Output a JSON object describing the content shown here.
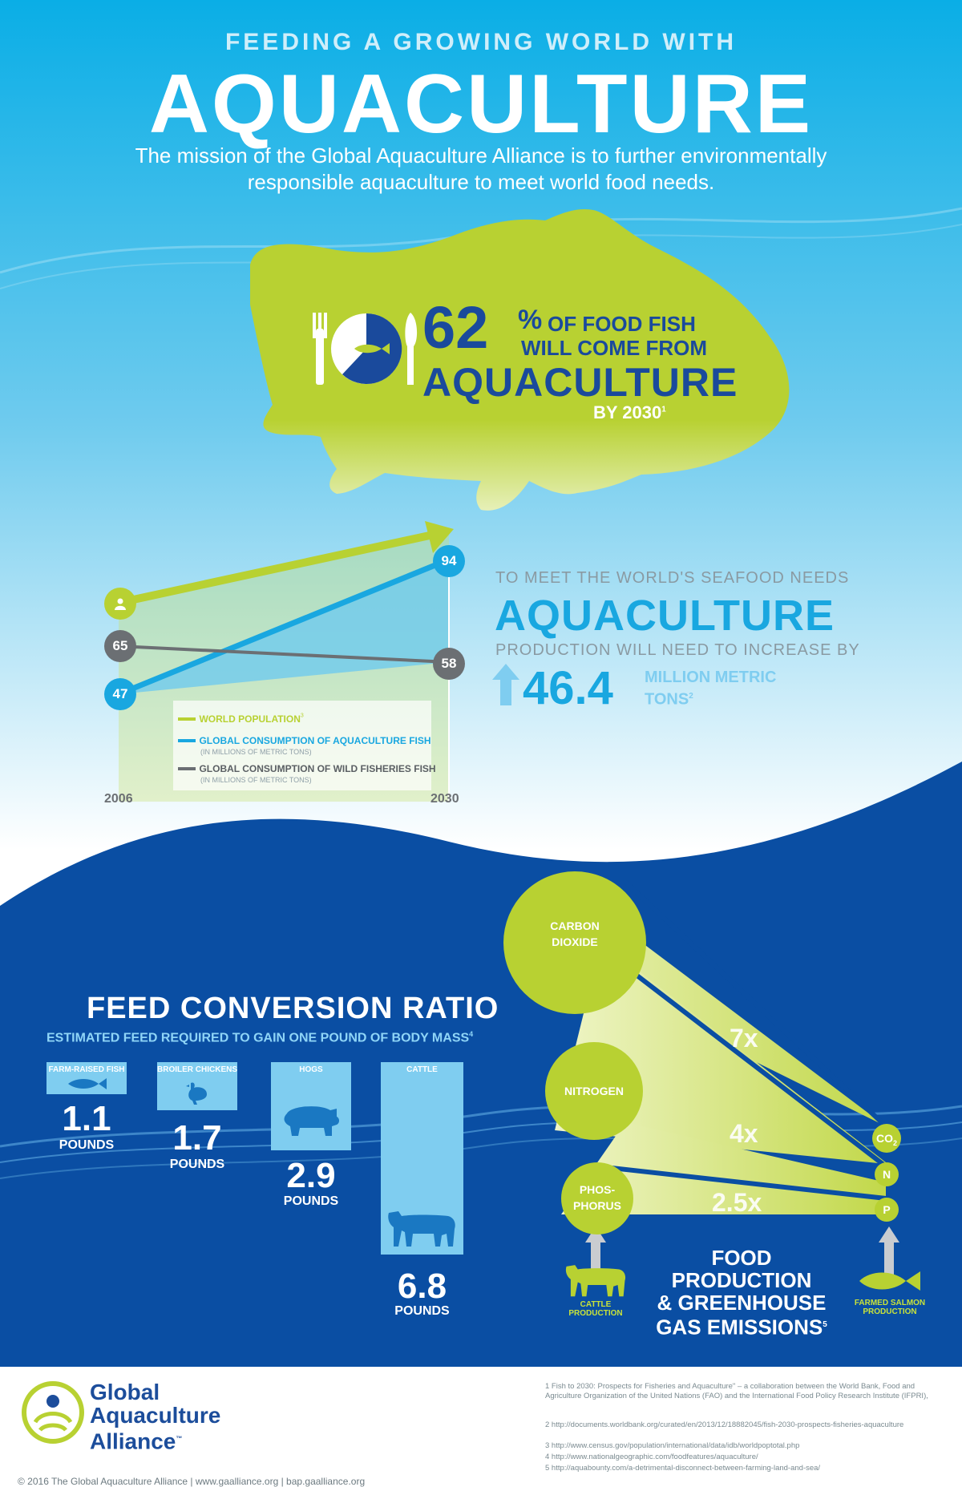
{
  "header": {
    "kicker": "FEEDING A GROWING WORLD WITH",
    "title": "AQUACULTURE",
    "mission": "The mission of the Global Aquaculture Alliance is to further environmentally responsible aquaculture to meet world food needs."
  },
  "stat": {
    "percent": "62",
    "percent_symbol": "%",
    "line1": "OF FOOD FISH",
    "line2": "WILL COME FROM",
    "big": "AQUACULTURE",
    "year": "BY 2030",
    "footnote": "1",
    "pie_fraction": 0.62
  },
  "chart_data": {
    "type": "line",
    "x": [
      "2006",
      "2030"
    ],
    "series": [
      {
        "name": "WORLD POPULATION",
        "footnote": "3",
        "values": [
          null,
          null
        ],
        "color": "#b8d132"
      },
      {
        "name": "GLOBAL CONSUMPTION OF AQUACULTURE FISH",
        "sub": "(IN MILLIONS OF METRIC TONS)",
        "values": [
          47,
          94
        ],
        "color": "#19a7e0"
      },
      {
        "name": "GLOBAL CONSUMPTION OF WILD FISHERIES FISH",
        "sub": "(IN MILLIONS OF METRIC TONS)",
        "values": [
          65,
          58
        ],
        "color": "#6b6f73"
      }
    ],
    "labels": {
      "start": "47",
      "end": "94",
      "wild_start": "65",
      "wild_end": "58"
    },
    "ylim": [
      30,
      110
    ]
  },
  "meet": {
    "kicker": "TO MEET THE WORLD'S SEAFOOD NEEDS",
    "title": "AQUACULTURE",
    "sub": "PRODUCTION WILL NEED TO INCREASE BY",
    "number": "46.4",
    "unit1": "MILLION METRIC",
    "unit2": "TONS",
    "footnote": "2"
  },
  "fcr": {
    "title": "FEED CONVERSION RATIO",
    "subtitle": "ESTIMATED FEED REQUIRED TO GAIN ONE POUND OF BODY MASS",
    "footnote": "4",
    "items": [
      {
        "label": "FARM-RAISED FISH",
        "value": "1.1",
        "unit": "POUNDS",
        "icon": "fish-icon"
      },
      {
        "label": "BROILER CHICKENS",
        "value": "1.7",
        "unit": "POUNDS",
        "icon": "chicken-icon"
      },
      {
        "label": "HOGS",
        "value": "2.9",
        "unit": "POUNDS",
        "icon": "hog-icon"
      },
      {
        "label": "CATTLE",
        "value": "6.8",
        "unit": "POUNDS",
        "icon": "cow-icon"
      }
    ]
  },
  "emissions": {
    "bubbles": [
      {
        "label1": "CARBON",
        "label2": "DIOXIDE",
        "mult": "7x",
        "tag": "CO",
        "tag_sub": "2"
      },
      {
        "label1": "NITROGEN",
        "label2": "",
        "mult": "4x",
        "tag": "N",
        "tag_sub": ""
      },
      {
        "label1": "PHOS-",
        "label2": "PHORUS",
        "mult": "2.5x",
        "tag": "P",
        "tag_sub": ""
      }
    ],
    "title1": "FOOD PRODUCTION",
    "title2": "& GREENHOUSE",
    "title3": "GAS EMISSIONS",
    "footnote": "5",
    "left_label1": "CATTLE",
    "left_label2": "PRODUCTION",
    "right_label1": "FARMED SALMON",
    "right_label2": "PRODUCTION"
  },
  "footer": {
    "logo1": "Global",
    "logo2": "Aquaculture",
    "logo3": "Alliance",
    "tm": "™",
    "copyright": "© 2016 The Global Aquaculture Alliance | www.gaalliance.org | bap.gaalliance.org",
    "footnotes": [
      "1 Fish to 2030: Prospects for Fisheries and Aquaculture\" – a collaboration between the World Bank, Food and Agriculture Organization of the United Nations (FAO) and the International Food Policy Research Institute (IFPRI),",
      "2 http://documents.worldbank.org/curated/en/2013/12/18882045/fish-2030-prospects-fisheries-aquaculture",
      "3 http://www.census.gov/population/international/data/idb/worldpoptotal.php",
      "4 http://www.nationalgeographic.com/foodfeatures/aquaculture/",
      "5 http://aquabounty.com/a-detrimental-disconnect-between-farming-land-and-sea/"
    ]
  },
  "colors": {
    "sky": "#0fb0e6",
    "navy": "#0a4ea3",
    "lime": "#b8d132",
    "blue": "#19a7e0",
    "dark_blue": "#1a4a9c"
  }
}
